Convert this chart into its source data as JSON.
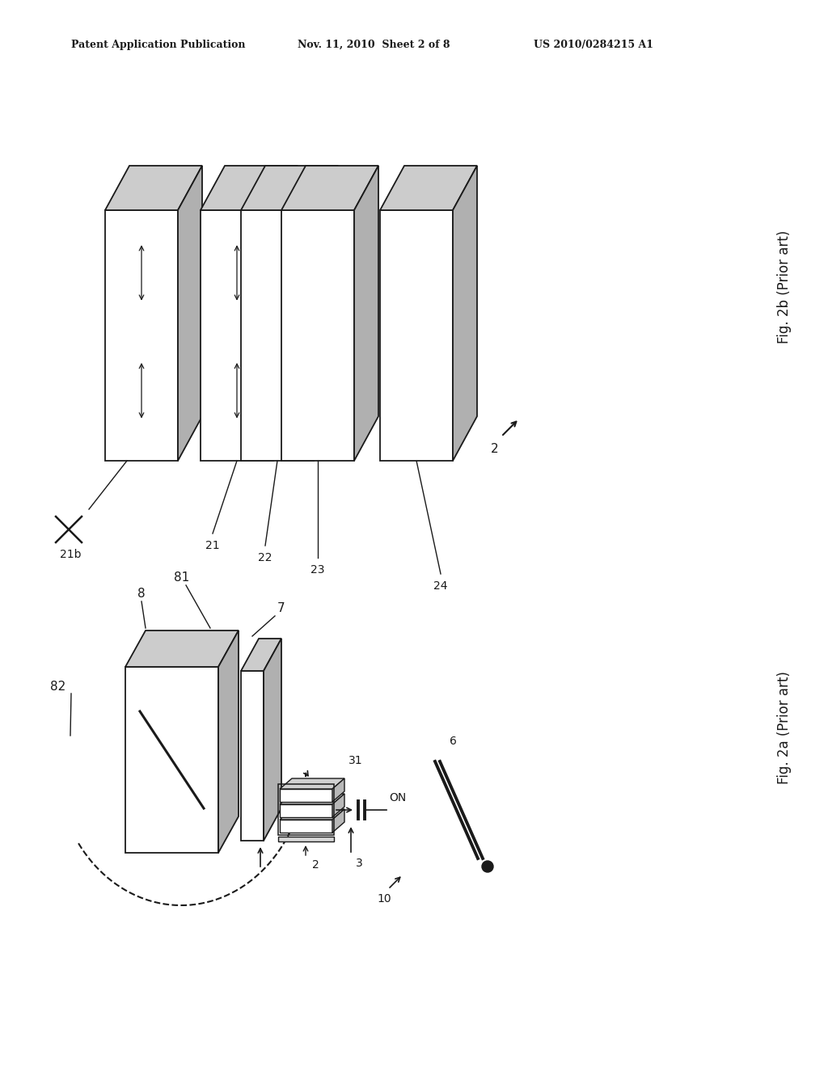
{
  "header_left": "Patent Application Publication",
  "header_mid": "Nov. 11, 2010  Sheet 2 of 8",
  "header_right": "US 2010/0284215 A1",
  "fig2b_label": "Fig. 2b (Prior art)",
  "fig2a_label": "Fig. 2a (Prior art)",
  "bg_color": "#ffffff",
  "line_color": "#1a1a1a",
  "gray_top": "#c8c8c8",
  "gray_side": "#a8a8a8",
  "gray_face": "#f0f0f0"
}
